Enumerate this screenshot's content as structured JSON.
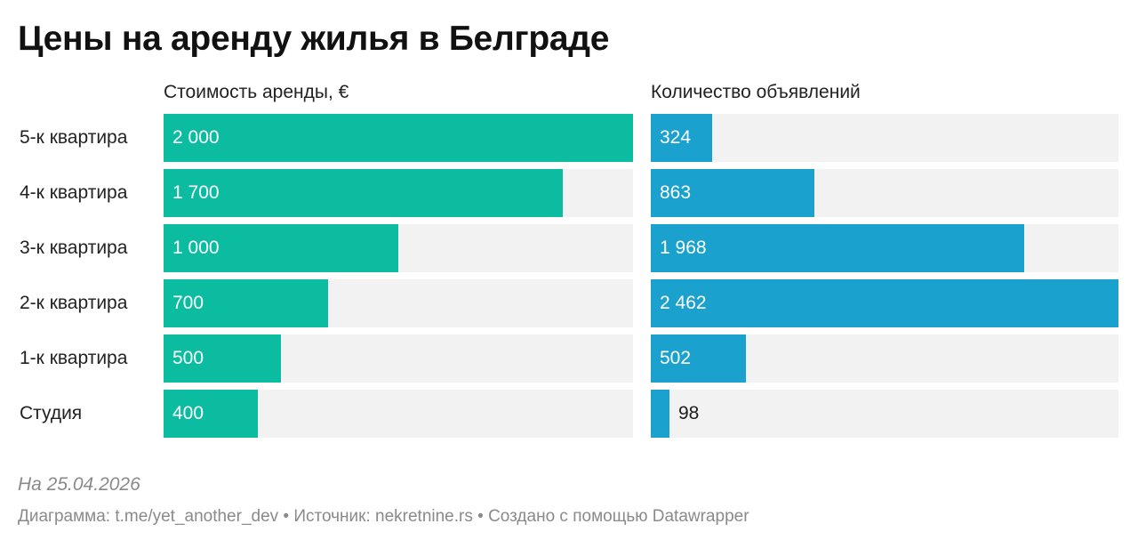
{
  "title": "Цены на аренду жилья в Белграде",
  "note": "На 25.04.2026",
  "footer": "Диаграмма: t.me/yet_another_dev • Источник: nekretnine.rs • Создано с помощью Datawrapper",
  "colors": {
    "price_bar": "#0bbca0",
    "count_bar": "#1aa1cd",
    "track": "#f2f2f2",
    "label_inside": "#ffffff",
    "label_outside": "#1d1d1d"
  },
  "chart_data": [
    {
      "type": "bar",
      "orientation": "horizontal",
      "title": "Стоимость аренды, €",
      "categories": [
        "5-к квартира",
        "4-к квартира",
        "3-к квартира",
        "2-к квартира",
        "1-к квартира",
        "Студия"
      ],
      "values": [
        2000,
        1700,
        1000,
        700,
        500,
        400
      ],
      "value_labels": [
        "2 000",
        "1 700",
        "1 000",
        "700",
        "500",
        "400"
      ],
      "xlim": [
        0,
        2000
      ]
    },
    {
      "type": "bar",
      "orientation": "horizontal",
      "title": "Количество объявлений",
      "categories": [
        "5-к квартира",
        "4-к квартира",
        "3-к квартира",
        "2-к квартира",
        "1-к квартира",
        "Студия"
      ],
      "values": [
        324,
        863,
        1968,
        2462,
        502,
        98
      ],
      "value_labels": [
        "324",
        "863",
        "1 968",
        "2 462",
        "502",
        "98"
      ],
      "xlim": [
        0,
        2462
      ]
    }
  ]
}
